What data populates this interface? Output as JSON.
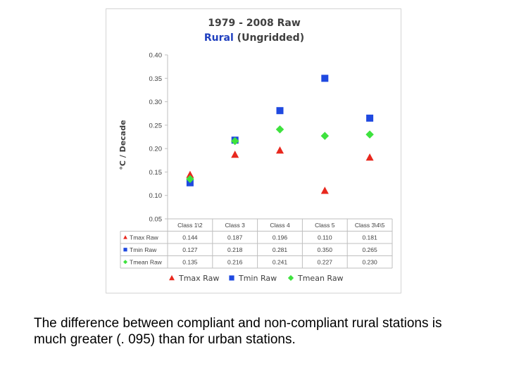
{
  "chart_data": {
    "type": "scatter",
    "title": "1979 - 2008 Raw",
    "subtitle_highlight": "Rural",
    "subtitle_rest": " (Ungridded)",
    "ylabel": "°C / Decade",
    "xlabel": "",
    "ylim": [
      0.05,
      0.4
    ],
    "yticks": [
      "0.40",
      "0.35",
      "0.30",
      "0.25",
      "0.20",
      "0.15",
      "0.10",
      "0.05"
    ],
    "grid": false,
    "legend_position": "bottom",
    "categories": [
      "Class 1\\2",
      "Class 3",
      "Class 4",
      "Class 5",
      "Class 3\\4\\5"
    ],
    "series": [
      {
        "name": "Tmax Raw",
        "marker": "triangle",
        "color": "#e8281e",
        "values": [
          0.144,
          0.187,
          0.196,
          0.11,
          0.181
        ],
        "labels": [
          "0.144",
          "0.187",
          "0.196",
          "0.110",
          "0.181"
        ]
      },
      {
        "name": "Tmin Raw",
        "marker": "square",
        "color": "#1f49e0",
        "values": [
          0.127,
          0.218,
          0.281,
          0.35,
          0.265
        ],
        "labels": [
          "0.127",
          "0.218",
          "0.281",
          "0.350",
          "0.265"
        ]
      },
      {
        "name": "Tmean Raw",
        "marker": "diamond",
        "color": "#3ee23e",
        "values": [
          0.135,
          0.216,
          0.241,
          0.227,
          0.23
        ],
        "labels": [
          "0.135",
          "0.216",
          "0.241",
          "0.227",
          "0.230"
        ]
      }
    ]
  },
  "caption": {
    "line1": "The difference between compliant and non-compliant rural stations is",
    "line2": "much greater (. 095) than for urban stations."
  }
}
